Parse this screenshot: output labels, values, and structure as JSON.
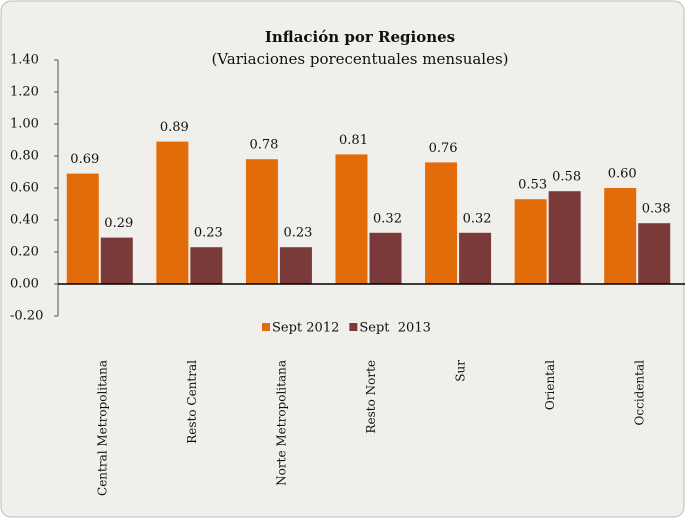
{
  "chart_data": {
    "type": "bar",
    "title": "Inflación por Regiones",
    "subtitle": "(Variaciones porecentuales mensuales)",
    "categories": [
      "Central Metropolitana",
      "Resto Central",
      "Norte Metropolitana",
      "Resto Norte",
      "Sur",
      "Oriental",
      "Occidental"
    ],
    "series": [
      {
        "name": "Sept 2012",
        "color": "#e36c0a",
        "values": [
          0.69,
          0.89,
          0.78,
          0.81,
          0.76,
          0.53,
          0.6
        ],
        "value_labels": [
          "0.69",
          "0.89",
          "0.78",
          "0.81",
          "0.76",
          "0.53",
          "0.60"
        ]
      },
      {
        "name": "Sept  2013",
        "color": "#7b3a3a",
        "values": [
          0.29,
          0.23,
          0.23,
          0.32,
          0.32,
          0.58,
          0.38
        ],
        "value_labels": [
          "0.29",
          "0.23",
          "0.23",
          "0.32",
          "0.32",
          "0.58",
          "0.38"
        ]
      }
    ],
    "ylim": [
      -0.2,
      1.4
    ],
    "yticks": [
      {
        "value": -0.2,
        "label": "-0.20"
      },
      {
        "value": 0,
        "label": "0.00"
      },
      {
        "value": 0.2,
        "label": "0.20"
      },
      {
        "value": 0.4,
        "label": "0.40"
      },
      {
        "value": 0.6,
        "label": "0.60"
      },
      {
        "value": 0.8,
        "label": "0.80"
      },
      {
        "value": 1.0,
        "label": "1.00"
      },
      {
        "value": 1.2,
        "label": "1.20"
      },
      {
        "value": 1.4,
        "label": "1.40"
      }
    ],
    "legend": "center"
  }
}
